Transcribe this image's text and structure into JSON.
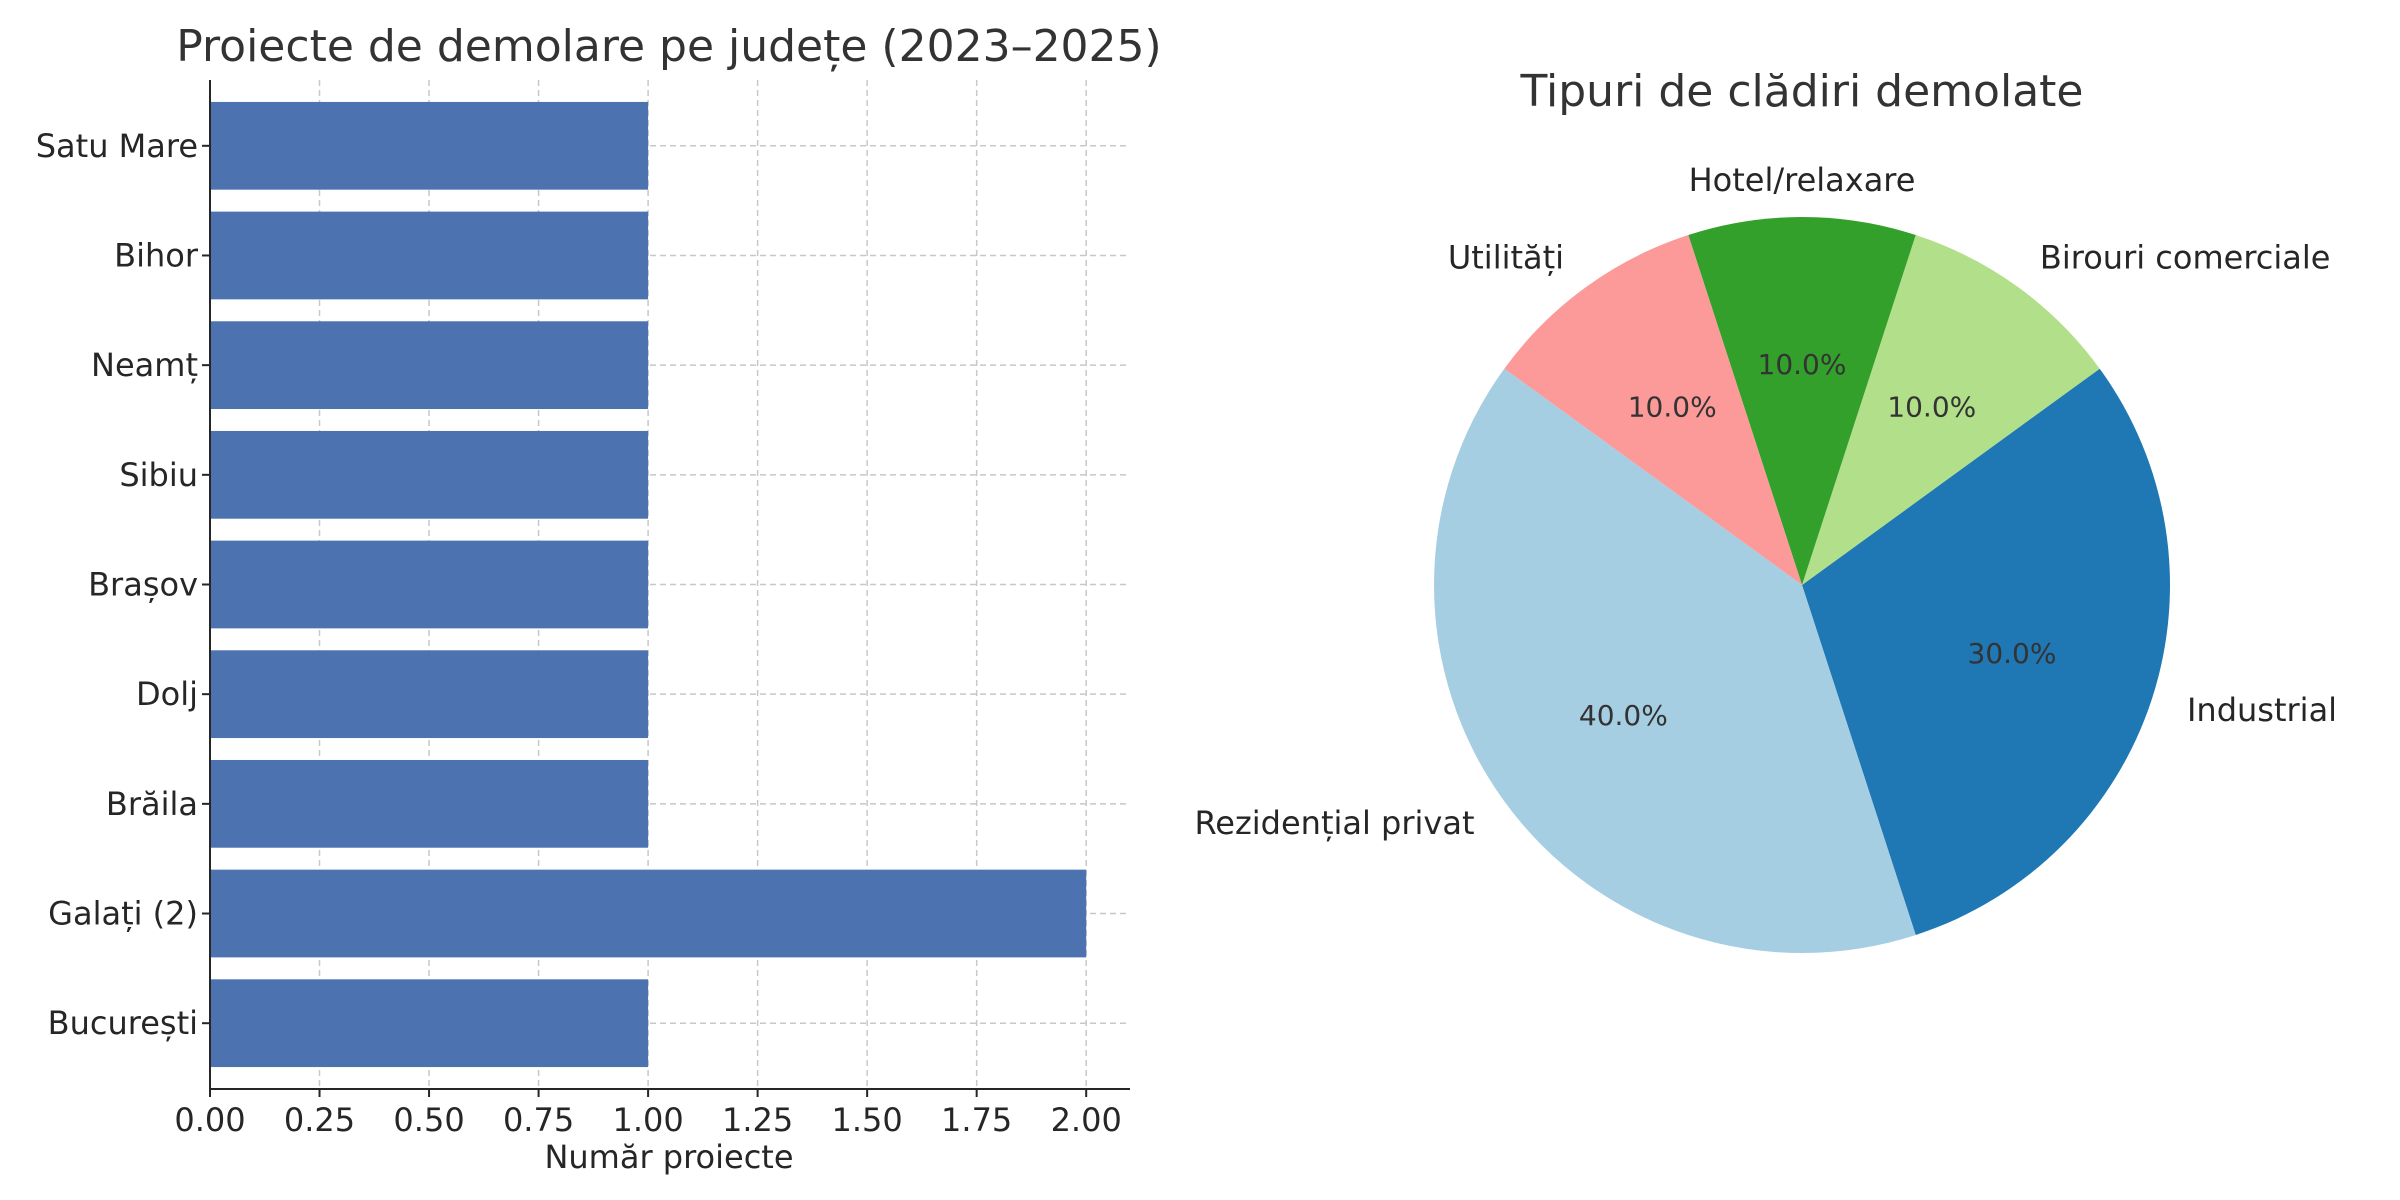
{
  "chart_data": [
    {
      "type": "bar",
      "orientation": "horizontal",
      "title": "Proiecte de demolare pe județe (2023–2025)",
      "xlabel": "Număr proiecte",
      "ylabel": "",
      "categories": [
        "București",
        "Galați (2)",
        "Brăila",
        "Dolj",
        "Brașov",
        "Sibiu",
        "Neamț",
        "Bihor",
        "Satu Mare"
      ],
      "values": [
        1,
        2,
        1,
        1,
        1,
        1,
        1,
        1,
        1
      ],
      "xlim": [
        0,
        2.1
      ],
      "xticks": [
        "0.00",
        "0.25",
        "0.50",
        "0.75",
        "1.00",
        "1.25",
        "1.50",
        "1.75",
        "2.00"
      ],
      "grid": true,
      "color": "#4c72b0"
    },
    {
      "type": "pie",
      "title": "Tipuri de clădiri demolate",
      "labels": [
        "Industrial",
        "Birouri comerciale",
        "Hotel/relaxare",
        "Utilități",
        "Rezidențial privat"
      ],
      "values": [
        30.0,
        10.0,
        10.0,
        10.0,
        40.0
      ],
      "pct_labels": [
        "30.0%",
        "10.0%",
        "10.0%",
        "10.0%",
        "40.0%"
      ],
      "colors": [
        "#1f78b4",
        "#b2df8a",
        "#33a02c",
        "#fb9a99",
        "#a6cee3"
      ]
    }
  ]
}
